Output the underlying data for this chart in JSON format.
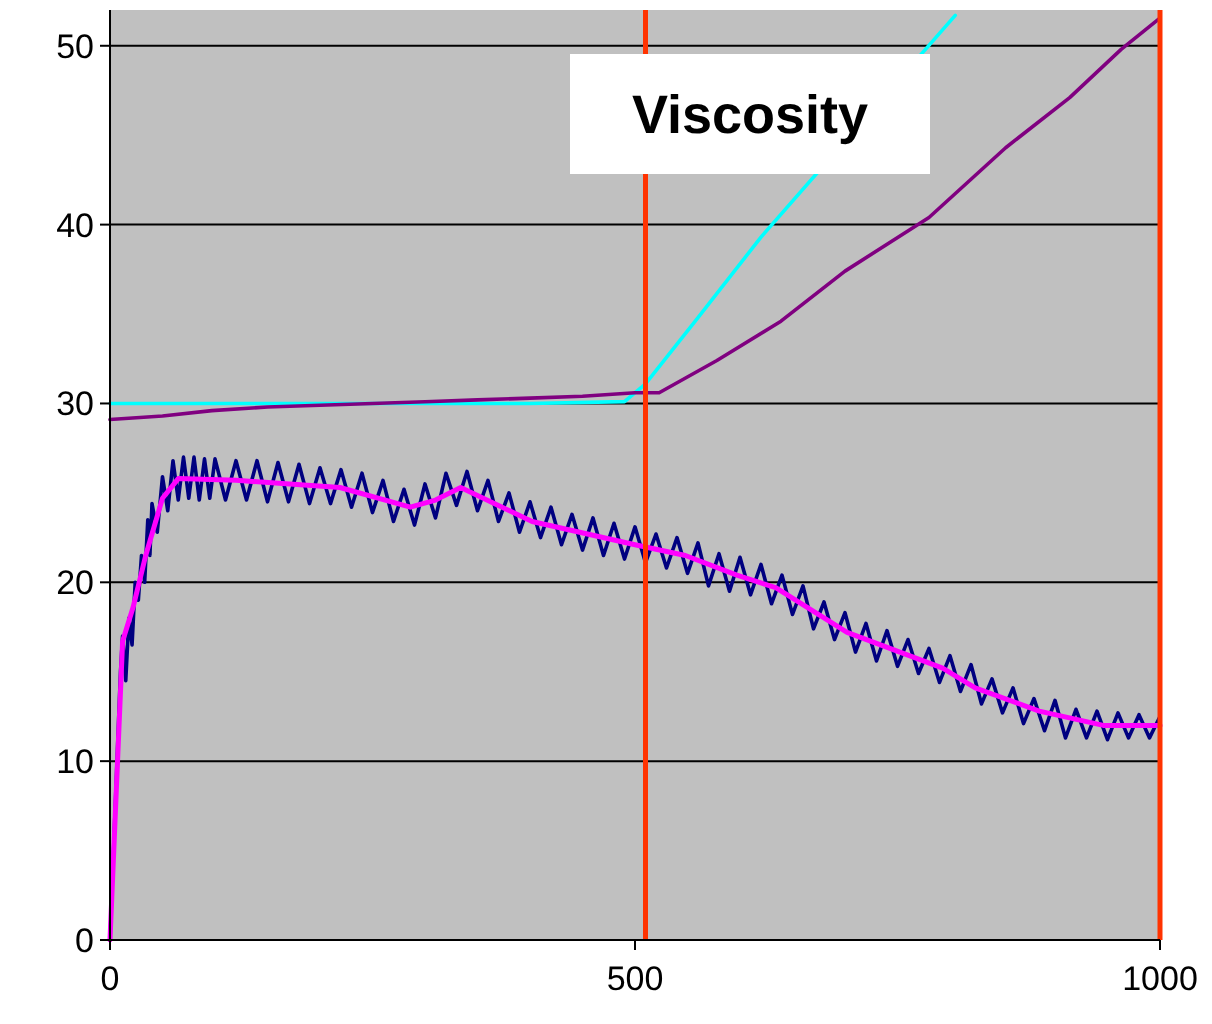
{
  "chart_data": {
    "type": "line",
    "annotations": [
      "Viscosity"
    ],
    "xlim": [
      0,
      1000
    ],
    "xticks": [
      0,
      500,
      1000
    ],
    "ylim": [
      0,
      52
    ],
    "yticks": [
      0,
      10,
      20,
      30,
      40,
      50
    ],
    "grid": "y",
    "marker": "none",
    "series": [
      {
        "color": "#00ffff",
        "x": [
          0,
          100,
          200,
          300,
          400,
          490,
          510,
          560,
          620,
          805
        ],
        "values": [
          30,
          30,
          30,
          30,
          30,
          30.1,
          31.1,
          34.8,
          39.3,
          51.7
        ]
      },
      {
        "color": "#800080",
        "x": [
          0,
          50,
          97,
          150,
          200,
          250,
          300,
          350,
          400,
          450,
          500,
          523,
          578,
          639,
          700,
          780,
          853,
          914,
          963,
          999
        ],
        "values": [
          29.1,
          29.3,
          29.6,
          29.8,
          29.9,
          30,
          30.1,
          30.2,
          30.3,
          30.4,
          30.6,
          30.6,
          32.4,
          34.6,
          37.4,
          40.4,
          44.3,
          47.1,
          49.8,
          51.5
        ]
      },
      {
        "color": "#000080",
        "x": [
          0,
          10,
          12,
          15,
          18,
          21,
          24,
          27,
          30,
          33,
          36,
          38,
          40,
          45,
          50,
          55,
          60,
          65,
          70,
          75,
          80,
          85,
          90,
          95,
          100,
          110,
          120,
          130,
          140,
          150,
          160,
          170,
          180,
          190,
          200,
          210,
          220,
          230,
          240,
          250,
          260,
          270,
          280,
          290,
          300,
          310,
          320,
          330,
          340,
          350,
          360,
          370,
          380,
          390,
          400,
          410,
          420,
          430,
          440,
          450,
          460,
          470,
          480,
          490,
          500,
          510,
          520,
          530,
          540,
          550,
          560,
          570,
          580,
          590,
          600,
          610,
          620,
          630,
          640,
          650,
          660,
          670,
          680,
          690,
          700,
          710,
          720,
          730,
          740,
          750,
          760,
          770,
          780,
          790,
          800,
          810,
          820,
          830,
          840,
          850,
          860,
          870,
          880,
          890,
          900,
          910,
          920,
          930,
          940,
          950,
          960,
          970,
          980,
          990,
          1000
        ],
        "values": [
          0,
          15,
          17,
          14.5,
          18,
          16.5,
          20,
          19,
          21.5,
          20,
          23.5,
          21.5,
          24.4,
          22.8,
          25.9,
          24,
          26.8,
          24.6,
          27,
          24.7,
          27,
          24.6,
          26.9,
          24.7,
          26.9,
          24.6,
          26.8,
          24.6,
          26.8,
          24.5,
          26.7,
          24.5,
          26.6,
          24.4,
          26.4,
          24.4,
          26.3,
          24.2,
          26.1,
          23.9,
          25.7,
          23.4,
          25.2,
          23.2,
          25.5,
          23.6,
          26.1,
          24.3,
          26.2,
          24,
          25.7,
          23.4,
          25,
          22.8,
          24.5,
          22.5,
          24.2,
          22.1,
          23.8,
          21.8,
          23.6,
          21.5,
          23.3,
          21.3,
          23.1,
          21.1,
          22.7,
          20.8,
          22.5,
          20.5,
          22.2,
          19.8,
          21.6,
          19.5,
          21.4,
          19.3,
          21,
          18.8,
          20.4,
          18.2,
          19.8,
          17.4,
          18.9,
          16.8,
          18.3,
          16.1,
          17.7,
          15.6,
          17.3,
          15.3,
          16.8,
          14.9,
          16.3,
          14.4,
          15.9,
          13.9,
          15.4,
          13.2,
          14.6,
          12.7,
          14.1,
          12.1,
          13.5,
          11.7,
          13.4,
          11.3,
          12.9,
          11.3,
          12.8,
          11.2,
          12.7,
          11.3,
          12.6,
          11.3,
          12.5
        ]
      },
      {
        "color": "#ff00ff",
        "x": [
          0,
          12,
          22,
          34,
          50,
          65,
          120,
          219,
          286,
          310,
          334,
          402,
          500,
          548,
          597,
          634,
          702,
          793,
          824,
          885,
          946,
          1000
        ],
        "values": [
          0,
          16.7,
          18.6,
          21.5,
          24.7,
          25.8,
          25.7,
          25.3,
          24.2,
          24.6,
          25.3,
          23.4,
          22.1,
          21.5,
          20.4,
          19.7,
          17.2,
          15.2,
          14.1,
          12.8,
          12,
          12
        ]
      }
    ],
    "ref_lines": [
      {
        "axis": "x",
        "value": 510,
        "color": "#ff3300"
      },
      {
        "axis": "x",
        "value": 1000,
        "color": "#ff3300"
      }
    ]
  }
}
